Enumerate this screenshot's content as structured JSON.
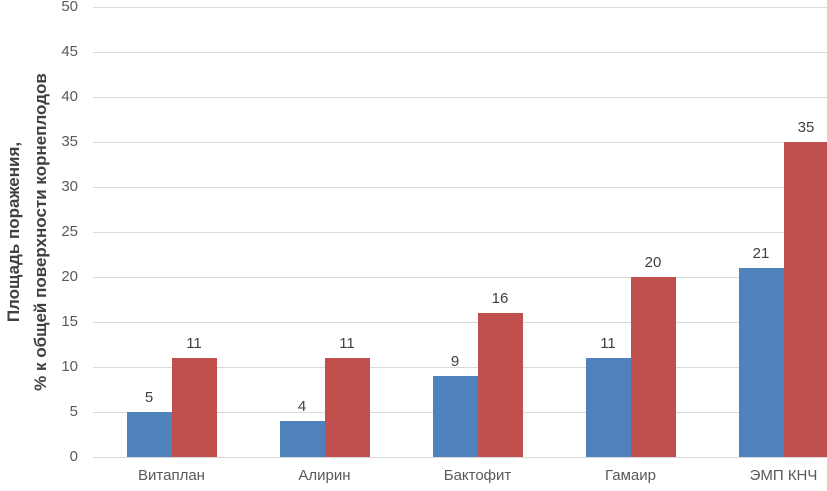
{
  "chart_data": {
    "type": "bar",
    "title": "",
    "ylabel_line1": "Площадь поражения,",
    "ylabel_line2": "% к общей поверхности корнеплодов",
    "xlabel": "",
    "categories": [
      "Витаплан",
      "Алирин",
      "Бактофит",
      "Гамаир",
      "ЭМП КНЧ"
    ],
    "series": [
      {
        "name": "series-blue",
        "color": "#4F81BD",
        "values": [
          5,
          4,
          9,
          11,
          21
        ]
      },
      {
        "name": "series-red",
        "color": "#C0504D",
        "values": [
          11,
          11,
          16,
          20,
          35
        ]
      }
    ],
    "data_labels": [
      "5",
      "4",
      "9",
      "11",
      "21",
      "11",
      "11",
      "16",
      "20",
      "35"
    ],
    "ylim": [
      0,
      50
    ],
    "ytick_step": 5,
    "yticks": [
      "0",
      "5",
      "10",
      "15",
      "20",
      "25",
      "30",
      "35",
      "40",
      "45",
      "50"
    ],
    "grid": "horizontal",
    "legend": "none",
    "colors": {
      "gridline": "#D9D9D9",
      "axis_text": "#595959",
      "data_label_text": "#404040",
      "axis_title_text": "#404040",
      "background": "#FFFFFF"
    }
  }
}
